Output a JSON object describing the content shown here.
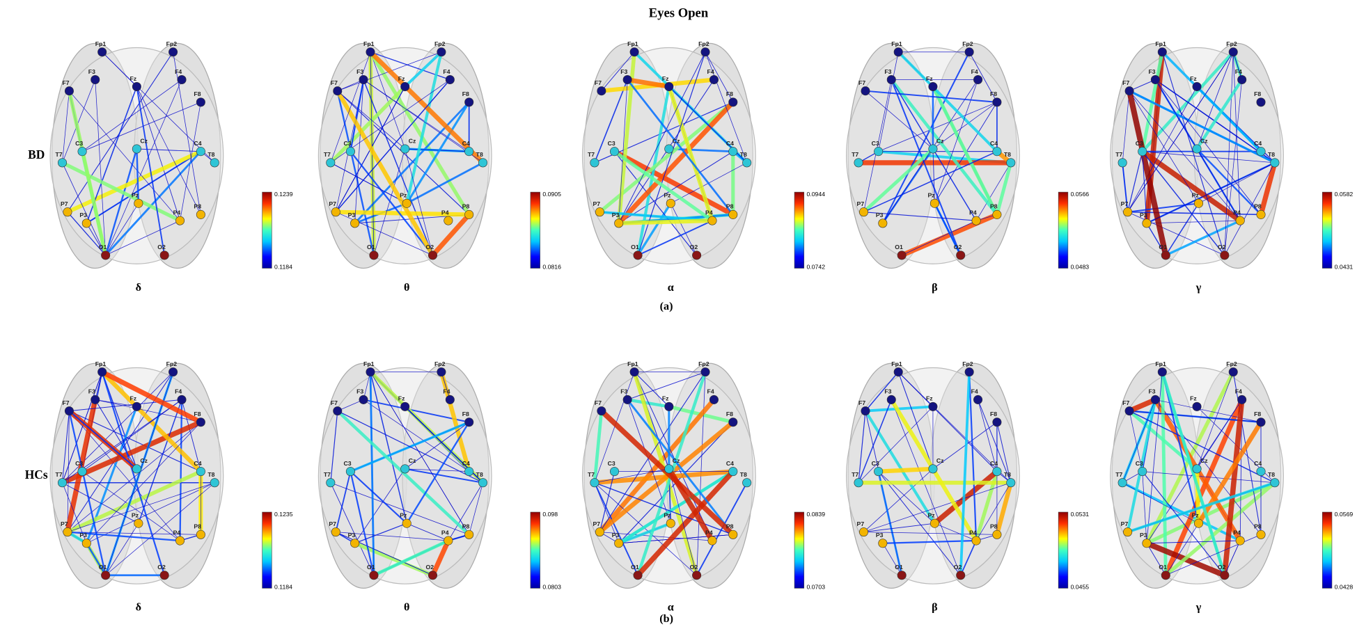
{
  "title": "Eyes Open",
  "electrodes": [
    "Fp1",
    "Fp2",
    "F7",
    "F3",
    "Fz",
    "F4",
    "F8",
    "T7",
    "C3",
    "Cz",
    "C4",
    "T8",
    "P7",
    "P3",
    "Pz",
    "P4",
    "P8",
    "O1",
    "O2"
  ],
  "rows": [
    {
      "label": "BD",
      "caption": "(a)",
      "panels": [
        {
          "band": "δ",
          "colorbar": {
            "max": "0.1239",
            "min": "0.1184"
          }
        },
        {
          "band": "θ",
          "colorbar": {
            "max": "0.0905",
            "min": "0.0816"
          }
        },
        {
          "band": "α",
          "colorbar": {
            "max": "0.0944",
            "min": "0.0742"
          }
        },
        {
          "band": "β",
          "colorbar": {
            "max": "0.0566",
            "min": "0.0483"
          }
        },
        {
          "band": "γ",
          "colorbar": {
            "max": "0.0582",
            "min": "0.0431"
          }
        }
      ]
    },
    {
      "label": "HCs",
      "caption": "(b)",
      "panels": [
        {
          "band": "δ",
          "colorbar": {
            "max": "0.1235",
            "min": "0.1184"
          }
        },
        {
          "band": "θ",
          "colorbar": {
            "max": "0.098",
            "min": "0.0803"
          }
        },
        {
          "band": "α",
          "colorbar": {
            "max": "0.0839",
            "min": "0.0703"
          }
        },
        {
          "band": "β",
          "colorbar": {
            "max": "0.0531",
            "min": "0.0455"
          }
        },
        {
          "band": "γ",
          "colorbar": {
            "max": "0.0569",
            "min": "0.0428"
          }
        }
      ]
    }
  ]
}
